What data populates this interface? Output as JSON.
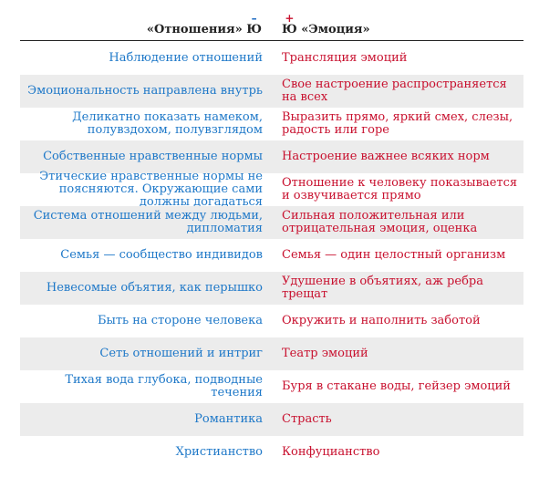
{
  "header": {
    "left_text": "«Отношения» Ю",
    "right_text": "Ю «Эмоция»",
    "left_mark": "–",
    "right_mark": "+"
  },
  "rows": [
    {
      "left": "Наблюдение отношений",
      "right": "Трансляция эмоций"
    },
    {
      "left": "Эмоциональность направлена внутрь",
      "right": "Свое настроение распространяется на всех"
    },
    {
      "left": "Деликатно показать намеком, полувздохом, полувзглядом",
      "right": "Выразить прямо, яркий смех, слезы, радость или горе"
    },
    {
      "left": "Собственные нравственные нормы",
      "right": "Настроение важнее всяких норм"
    },
    {
      "left": "Этические нравственные нормы не поясняются. Окружающие сами должны догадаться",
      "right": "Отношение к человеку показывается и озвучивается прямо"
    },
    {
      "left": "Система отношений между людьми, дипломатия",
      "right": "Сильная положительная или отрицательная эмоция, оценка"
    },
    {
      "left": "Семья — сообщество индивидов",
      "right": "Семья — один целостный организм"
    },
    {
      "left": "Невесомые объятия, как перышко",
      "right": "Удушение в объятиях, аж ребра трещат"
    },
    {
      "left": "Быть на стороне человека",
      "right": "Окружить и наполнить заботой"
    },
    {
      "left": "Сеть отношений и интриг",
      "right": "Театр эмоций"
    },
    {
      "left": "Тихая вода глубока, подводные течения",
      "right": "Буря в стакане воды, гейзер эмоций"
    },
    {
      "left": "Романтика",
      "right": "Страсть"
    },
    {
      "left": "Христианство",
      "right": "Конфуцианство"
    }
  ],
  "colors": {
    "left_text": "#1e78c8",
    "right_text": "#c8102e",
    "shade": "#ececec"
  }
}
